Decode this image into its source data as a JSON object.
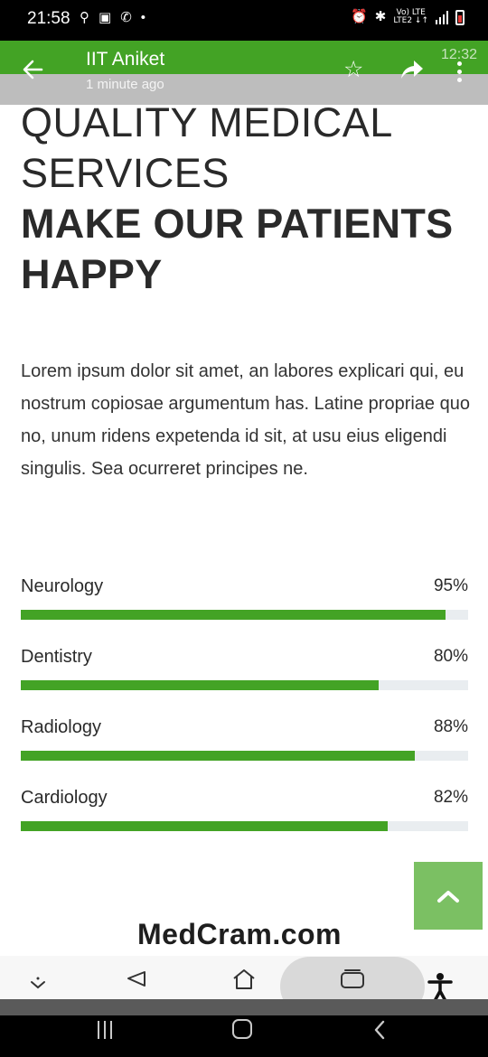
{
  "status_bar": {
    "time": "21:58",
    "network_top": "Vo) LTE",
    "network_bottom": "LTE2 ↓↑"
  },
  "app_bar": {
    "title": "IIT Aniket",
    "subtitle": "1 minute ago",
    "ghost_time": "12:32"
  },
  "hero": {
    "line1a": "QUALITY MEDICAL",
    "line1b": "SERVICES",
    "line2a": "MAKE OUR PATIENTS",
    "line2b": "HAPPY"
  },
  "intro": "Lorem ipsum dolor sit amet, an labores explicari qui, eu nostrum copiosae argumentum has. Latine propriae quo no, unum ridens expetenda id sit, at usu eius eligendi singulis. Sea ocurreret principes ne.",
  "skills": [
    {
      "label": "Neurology",
      "value_text": "95%",
      "percent": 95
    },
    {
      "label": "Dentistry",
      "value_text": "80%",
      "percent": 80
    },
    {
      "label": "Radiology",
      "value_text": "88%",
      "percent": 88
    },
    {
      "label": "Cardiology",
      "value_text": "82%",
      "percent": 82
    }
  ],
  "footer": {
    "logo_text": "MedCram.com"
  },
  "colors": {
    "accent_green": "#43a325",
    "scroll_button": "#7bc063",
    "track": "#e9edf0"
  },
  "icons": {
    "back": "arrow-left-icon",
    "favorite": "star-outline-icon",
    "share": "share-arrow-icon",
    "more": "more-vertical-icon",
    "scroll_top": "chevron-up-icon"
  }
}
